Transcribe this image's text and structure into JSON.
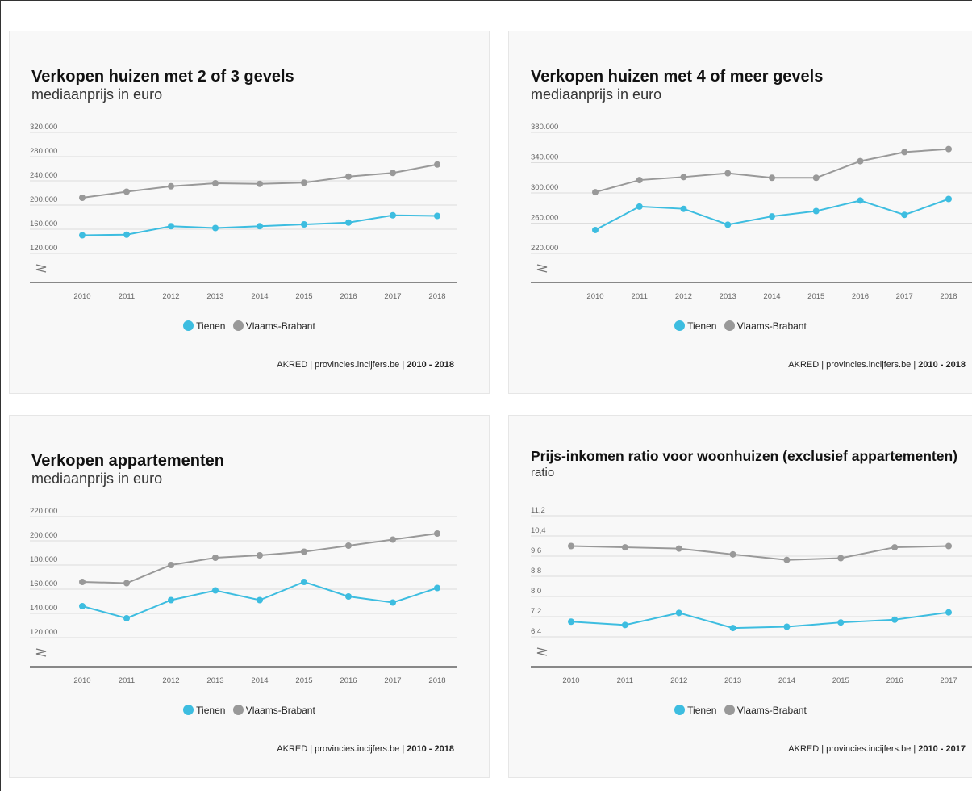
{
  "colors": {
    "tienen": "#3dbde0",
    "vlaams_brabant": "#999999"
  },
  "chart_data": [
    {
      "type": "line",
      "title": "Verkopen huizen met 2 of 3 gevels",
      "subtitle": "mediaanprijs in euro",
      "x": [
        "2010",
        "2011",
        "2012",
        "2013",
        "2014",
        "2015",
        "2016",
        "2017",
        "2018"
      ],
      "yticks": [
        "120.000",
        "160.000",
        "200.000",
        "240.000",
        "280.000",
        "320.000"
      ],
      "ylim": [
        120000,
        320000
      ],
      "series": [
        {
          "name": "Tienen",
          "values": [
            150000,
            151000,
            165000,
            162000,
            165000,
            168000,
            171000,
            183000,
            182000
          ]
        },
        {
          "name": "Vlaams-Brabant",
          "values": [
            212000,
            222000,
            231000,
            236000,
            235000,
            237000,
            247000,
            253000,
            267000
          ]
        }
      ],
      "legend": [
        "Tienen",
        "Vlaams-Brabant"
      ],
      "source": {
        "text": "AKRED | provincies.incijfers.be | ",
        "years": "2010 - 2018"
      }
    },
    {
      "type": "line",
      "title": "Verkopen huizen met 4 of meer gevels",
      "subtitle": "mediaanprijs in euro",
      "x": [
        "2010",
        "2011",
        "2012",
        "2013",
        "2014",
        "2015",
        "2016",
        "2017",
        "2018"
      ],
      "yticks": [
        "220.000",
        "260.000",
        "300.000",
        "340.000",
        "380.000"
      ],
      "ylim": [
        220000,
        380000
      ],
      "series": [
        {
          "name": "Tienen",
          "values": [
            251000,
            282000,
            279000,
            258000,
            269000,
            276000,
            290000,
            271000,
            292000
          ]
        },
        {
          "name": "Vlaams-Brabant",
          "values": [
            301000,
            317000,
            321000,
            326000,
            320000,
            320000,
            342000,
            354000,
            358000
          ]
        }
      ],
      "legend": [
        "Tienen",
        "Vlaams-Brabant"
      ],
      "source": {
        "text": "AKRED | provincies.incijfers.be | ",
        "years": "2010 - 2018"
      }
    },
    {
      "type": "line",
      "title": "Verkopen appartementen",
      "subtitle": "mediaanprijs in euro",
      "x": [
        "2010",
        "2011",
        "2012",
        "2013",
        "2014",
        "2015",
        "2016",
        "2017",
        "2018"
      ],
      "yticks": [
        "120.000",
        "140.000",
        "160.000",
        "180.000",
        "200.000",
        "220.000"
      ],
      "ylim": [
        120000,
        220000
      ],
      "series": [
        {
          "name": "Tienen",
          "values": [
            146000,
            136000,
            151000,
            159000,
            151000,
            166000,
            154000,
            149000,
            161000
          ]
        },
        {
          "name": "Vlaams-Brabant",
          "values": [
            166000,
            165000,
            180000,
            186000,
            188000,
            191000,
            196000,
            201000,
            206000
          ]
        }
      ],
      "legend": [
        "Tienen",
        "Vlaams-Brabant"
      ],
      "source": {
        "text": "AKRED | provincies.incijfers.be | ",
        "years": "2010 - 2018"
      }
    },
    {
      "type": "line",
      "title": "Prijs-inkomen ratio voor woonhuizen (exclusief appartementen)",
      "subtitle": "ratio",
      "x": [
        "2010",
        "2011",
        "2012",
        "2013",
        "2014",
        "2015",
        "2016",
        "2017"
      ],
      "yticks": [
        "6,4",
        "7,2",
        "8,0",
        "8,8",
        "9,6",
        "10,4",
        "11,2"
      ],
      "ylim": [
        6.4,
        11.2
      ],
      "series": [
        {
          "name": "Tienen",
          "values": [
            7.0,
            6.87,
            7.35,
            6.75,
            6.8,
            6.97,
            7.08,
            7.37
          ]
        },
        {
          "name": "Vlaams-Brabant",
          "values": [
            10.0,
            9.95,
            9.9,
            9.67,
            9.45,
            9.52,
            9.95,
            10.0
          ]
        }
      ],
      "legend": [
        "Tienen",
        "Vlaams-Brabant"
      ],
      "source": {
        "text": "AKRED | provincies.incijfers.be | ",
        "years": "2010 - 2017"
      }
    }
  ]
}
